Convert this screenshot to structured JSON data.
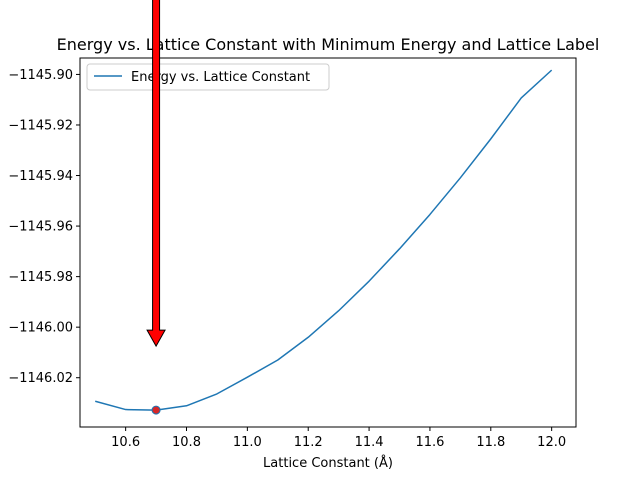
{
  "chart_data": {
    "type": "line",
    "title": "Energy vs. Lattice Constant with Minimum Energy and Lattice Label",
    "xlabel": "Lattice Constant (Å)",
    "ylabel": "",
    "xlim": [
      10.45,
      12.08
    ],
    "ylim": [
      -1146.0395,
      -1145.8935
    ],
    "xticks": [
      10.6,
      10.8,
      11.0,
      11.2,
      11.4,
      11.6,
      11.8,
      12.0
    ],
    "xtick_labels": [
      "10.6",
      "10.8",
      "11.0",
      "11.2",
      "11.4",
      "11.6",
      "11.8",
      "12.0"
    ],
    "yticks": [
      -1146.02,
      -1146.0,
      -1145.98,
      -1145.96,
      -1145.94,
      -1145.92,
      -1145.9
    ],
    "ytick_labels": [
      "−1146.02",
      "−1146.00",
      "−1145.98",
      "−1145.96",
      "−1145.94",
      "−1145.92",
      "−1145.90"
    ],
    "grid": false,
    "legend_position": "upper-left",
    "series": [
      {
        "name": "Energy vs. Lattice Constant",
        "color": "#1f77b4",
        "x": [
          10.5,
          10.6,
          10.7,
          10.8,
          10.9,
          11.0,
          11.1,
          11.2,
          11.3,
          11.4,
          11.5,
          11.6,
          11.7,
          11.8,
          11.9,
          12.0
        ],
        "y": [
          -1146.0293,
          -1146.0326,
          -1146.0328,
          -1146.0311,
          -1146.0264,
          -1146.0198,
          -1146.013,
          -1146.004,
          -1145.9935,
          -1145.9818,
          -1145.969,
          -1145.9554,
          -1145.9409,
          -1145.9255,
          -1145.9093,
          -1145.8983
        ]
      }
    ],
    "minimum_point": {
      "x": 10.7,
      "y": -1146.0328,
      "color": "#d62728"
    },
    "annotation_arrow": {
      "x": 10.7,
      "y_tip": -1146.0075,
      "fill": "#ff0000",
      "edge": "#000000"
    }
  }
}
